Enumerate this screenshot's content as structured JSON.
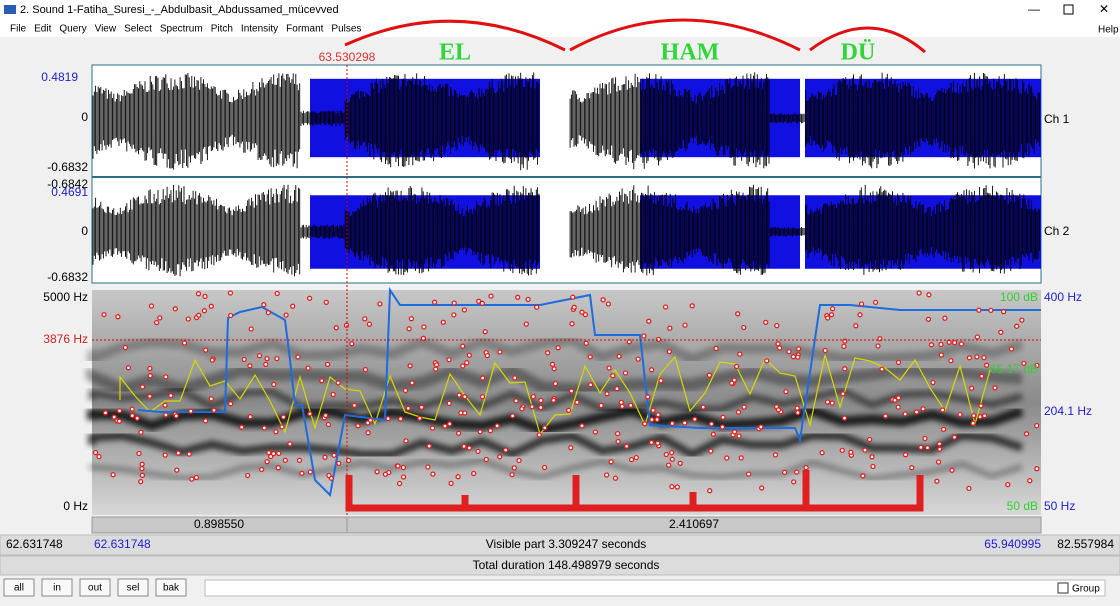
{
  "window": {
    "title": "2. Sound 1-Fatiha_Suresi_-_Abdulbasit_Abdussamed_mücevved",
    "help": "Help"
  },
  "menu": [
    "File",
    "Edit",
    "Query",
    "View",
    "Select",
    "Spectrum",
    "Pitch",
    "Intensity",
    "Formant",
    "Pulses"
  ],
  "annotations": {
    "cursor_time": "63.530298",
    "syllables": [
      "EL",
      "HAM",
      "DÜ"
    ]
  },
  "waveform": {
    "ch1": {
      "max": "0.4819",
      "zero": "0",
      "min": "-0.6832",
      "label": "Ch 1"
    },
    "ch2": {
      "overlap": "-0.6842",
      "max": "0.4691",
      "zero": "0",
      "min": "-0.6832",
      "label": "Ch 2"
    }
  },
  "spectrogram": {
    "top": "5000 Hz",
    "cursor": "3876 Hz",
    "bottom": "0 Hz",
    "pitch_top": "400 Hz",
    "pitch_mid": "204.1 Hz",
    "pitch_bottom": "50 Hz",
    "db_top": "100 dB",
    "db_mid": "65.17 dB",
    "db_bottom": "50 dB"
  },
  "selection": {
    "left": "0.898550",
    "right": "2.410697"
  },
  "time": {
    "window_start": "62.631748",
    "visible_start": "62.631748",
    "visible": "Visible part 3.309247 seconds",
    "visible_end": "65.940995",
    "window_end": "82.557984",
    "total": "Total duration 148.498979 seconds"
  },
  "buttons": [
    "all",
    "in",
    "out",
    "sel",
    "bak"
  ],
  "group": "Group"
}
